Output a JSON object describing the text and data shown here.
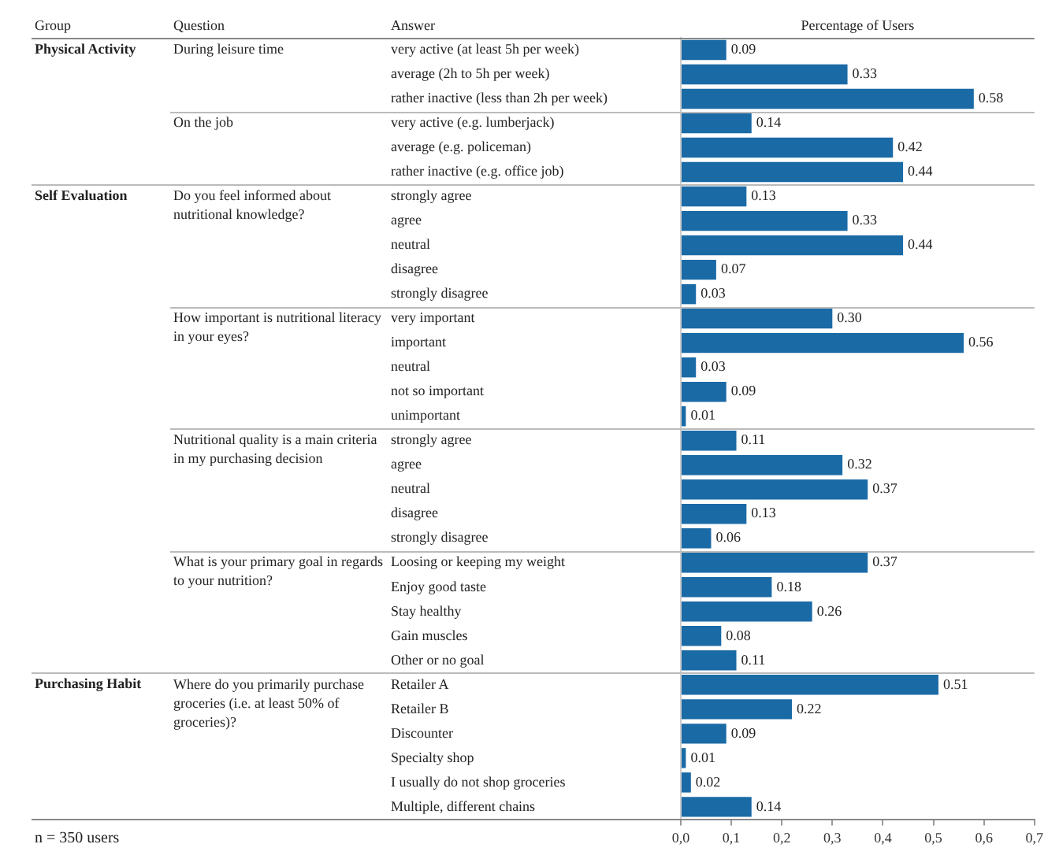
{
  "chart_data": {
    "type": "bar",
    "orientation": "horizontal",
    "title": "Percentage of Users",
    "categories": [
      "very active (at least 5h per week)",
      "average (2h to 5h per week)",
      "rather inactive (less than 2h per week)",
      "very active (e.g. lumberjack)",
      "average (e.g. policeman)",
      "rather inactive (e.g. office job)",
      "strongly agree",
      "agree",
      "neutral",
      "disagree",
      "strongly disagree",
      "very important",
      "important",
      "neutral",
      "not so important",
      "unimportant",
      "strongly agree",
      "agree",
      "neutral",
      "disagree",
      "strongly disagree",
      "Loosing or keeping my weight",
      "Enjoy good taste",
      "Stay healthy",
      "Gain muscles",
      "Other or no goal",
      "Retailer A",
      "Retailer B",
      "Discounter",
      "Specialty shop",
      "I usually do not shop groceries",
      "Multiple, different chains"
    ],
    "values": [
      0.09,
      0.33,
      0.58,
      0.14,
      0.42,
      0.44,
      0.13,
      0.33,
      0.44,
      0.07,
      0.03,
      0.3,
      0.56,
      0.03,
      0.09,
      0.01,
      0.11,
      0.32,
      0.37,
      0.13,
      0.06,
      0.37,
      0.18,
      0.26,
      0.08,
      0.11,
      0.51,
      0.22,
      0.09,
      0.01,
      0.02,
      0.14
    ],
    "value_labels": [
      "0.09",
      "0.33",
      "0.58",
      "0.14",
      "0.42",
      "0.44",
      "0.13",
      "0.33",
      "0.44",
      "0.07",
      "0.03",
      "0.30",
      "0.56",
      "0.03",
      "0.09",
      "0.01",
      "0.11",
      "0.32",
      "0.37",
      "0.13",
      "0.06",
      "0.37",
      "0.18",
      "0.26",
      "0.08",
      "0.11",
      "0.51",
      "0.22",
      "0.09",
      "0.01",
      "0.02",
      "0.14"
    ],
    "color": "#1a6aa6",
    "xlim": [
      0,
      0.7
    ],
    "xticks": [
      {
        "value": 0,
        "label": "0,0"
      },
      {
        "value": 0.1,
        "label": "0,1"
      },
      {
        "value": 0.2,
        "label": "0,2"
      },
      {
        "value": 0.3,
        "label": "0,3"
      },
      {
        "value": 0.4,
        "label": "0,4"
      },
      {
        "value": 0.5,
        "label": "0,5"
      },
      {
        "value": 0.6,
        "label": "0,6"
      },
      {
        "value": 0.7,
        "label": "0,7"
      }
    ],
    "grid": false,
    "legend": false,
    "annotations": [
      "Group",
      "Question",
      "Answer",
      "Physical Activity",
      "During leisure time",
      "On the job",
      "Self Evaluation",
      "Do you feel informed about nutritional knowledge?",
      "How important is nutritional literacy in your eyes?",
      "Nutritional quality is a main criteria in my purchasing decision",
      "What is your primary goal in regards to your nutrition?",
      "Purchasing Habit",
      "Where do you primarily purchase groceries (i.e. at least 50% of groceries)?",
      "n = 350 users"
    ]
  }
}
